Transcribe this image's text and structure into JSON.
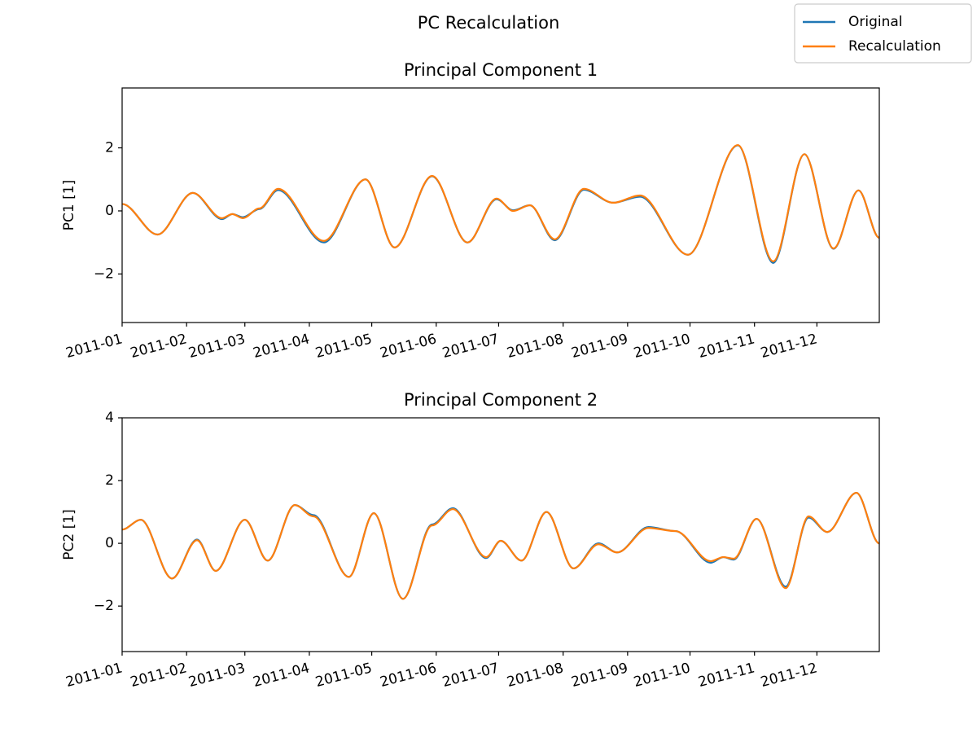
{
  "title": "PC Recalculation",
  "legend": "upper right",
  "chart_data": [
    {
      "type": "line",
      "title": "Principal Component 1",
      "ylabel": "PC1 [1]",
      "x": [
        0,
        17,
        34,
        48,
        53,
        58,
        66,
        75,
        97,
        117,
        131,
        149,
        166,
        180,
        188,
        196,
        208,
        222,
        236,
        249,
        272,
        296,
        313,
        328,
        342,
        354,
        364
      ],
      "series": [
        {
          "name": "Original",
          "color": "#1f77b4",
          "values": [
            0.22,
            -0.75,
            0.57,
            -0.26,
            -0.1,
            -0.2,
            0.06,
            0.66,
            -1.0,
            1.0,
            -1.16,
            1.1,
            -1.0,
            0.37,
            0.02,
            0.18,
            -0.93,
            0.67,
            0.26,
            0.45,
            -1.39,
            2.08,
            -1.65,
            1.8,
            -1.2,
            0.65,
            -0.85
          ]
        },
        {
          "name": "Recalculation",
          "color": "#ff7f0e",
          "values": [
            0.22,
            -0.75,
            0.57,
            -0.23,
            -0.1,
            -0.23,
            0.08,
            0.7,
            -0.95,
            1.0,
            -1.16,
            1.11,
            -1.0,
            0.39,
            0.0,
            0.18,
            -0.9,
            0.7,
            0.26,
            0.49,
            -1.39,
            2.09,
            -1.6,
            1.8,
            -1.19,
            0.65,
            -0.85
          ]
        }
      ],
      "xlim": [
        0,
        364
      ],
      "xticks": [
        {
          "value": 0,
          "label": "2011-01"
        },
        {
          "value": 31,
          "label": "2011-02"
        },
        {
          "value": 59,
          "label": "2011-03"
        },
        {
          "value": 90,
          "label": "2011-04"
        },
        {
          "value": 120,
          "label": "2011-05"
        },
        {
          "value": 151,
          "label": "2011-06"
        },
        {
          "value": 181,
          "label": "2011-07"
        },
        {
          "value": 212,
          "label": "2011-08"
        },
        {
          "value": 243,
          "label": "2011-09"
        },
        {
          "value": 273,
          "label": "2011-10"
        },
        {
          "value": 304,
          "label": "2011-11"
        },
        {
          "value": 334,
          "label": "2011-12"
        }
      ],
      "ylim": [
        -3.54,
        3.9
      ],
      "yticks": [
        {
          "value": -2,
          "label": "−2"
        },
        0,
        2
      ]
    },
    {
      "type": "line",
      "title": "Principal Component 2",
      "ylabel": "PC2 [1]",
      "x": [
        0,
        9,
        24,
        36,
        45,
        59,
        70,
        83,
        92,
        109,
        121,
        135,
        149,
        159,
        175,
        182,
        192,
        204,
        217,
        229,
        238,
        253,
        266,
        283,
        289,
        294,
        305,
        319,
        330,
        339,
        353,
        364
      ],
      "series": [
        {
          "name": "Original",
          "color": "#1f77b4",
          "values": [
            0.44,
            0.75,
            -1.12,
            0.12,
            -0.88,
            0.75,
            -0.55,
            1.22,
            0.9,
            -1.07,
            0.96,
            -1.77,
            0.6,
            1.12,
            -0.47,
            0.08,
            -0.55,
            1.0,
            -0.8,
            0.0,
            -0.29,
            0.52,
            0.39,
            -0.62,
            -0.44,
            -0.52,
            0.78,
            -1.38,
            0.82,
            0.36,
            1.61,
            0.0
          ]
        },
        {
          "name": "Recalculation",
          "color": "#ff7f0e",
          "values": [
            0.44,
            0.75,
            -1.12,
            0.1,
            -0.88,
            0.75,
            -0.55,
            1.22,
            0.86,
            -1.07,
            0.96,
            -1.77,
            0.57,
            1.09,
            -0.44,
            0.08,
            -0.55,
            1.0,
            -0.8,
            -0.03,
            -0.29,
            0.49,
            0.39,
            -0.57,
            -0.44,
            -0.49,
            0.78,
            -1.43,
            0.86,
            0.36,
            1.61,
            0.0
          ]
        }
      ],
      "xlim": [
        0,
        364
      ],
      "xticks": [
        {
          "value": 0,
          "label": "2011-01"
        },
        {
          "value": 31,
          "label": "2011-02"
        },
        {
          "value": 59,
          "label": "2011-03"
        },
        {
          "value": 90,
          "label": "2011-04"
        },
        {
          "value": 120,
          "label": "2011-05"
        },
        {
          "value": 151,
          "label": "2011-06"
        },
        {
          "value": 181,
          "label": "2011-07"
        },
        {
          "value": 212,
          "label": "2011-08"
        },
        {
          "value": 243,
          "label": "2011-09"
        },
        {
          "value": 273,
          "label": "2011-10"
        },
        {
          "value": 304,
          "label": "2011-11"
        },
        {
          "value": 334,
          "label": "2011-12"
        }
      ],
      "ylim": [
        -3.45,
        4.0
      ],
      "yticks": [
        {
          "value": -2,
          "label": "−2"
        },
        0,
        2,
        4
      ]
    }
  ]
}
